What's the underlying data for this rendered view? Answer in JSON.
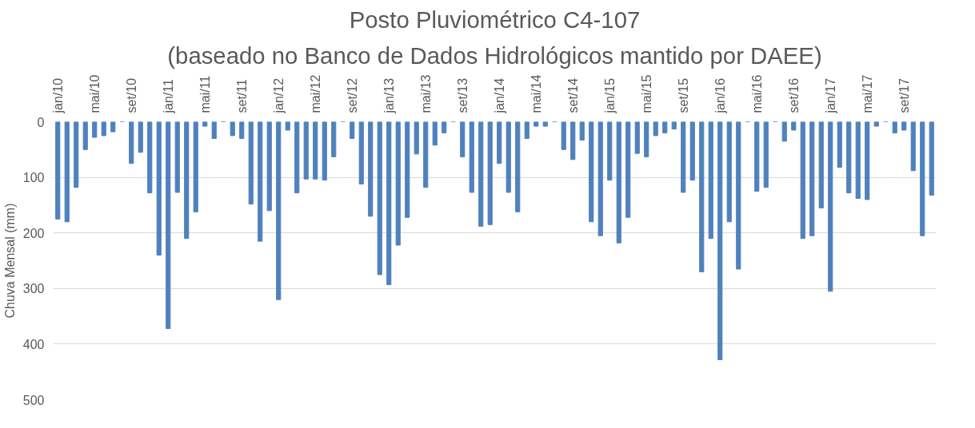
{
  "chart_data": {
    "type": "bar",
    "title": "Posto Pluviométrico C4-107",
    "subtitle": "(baseado no Banco de Dados Hidrológicos mantido por DAEE)",
    "ylabel": "Chuva Mensal (mm)",
    "categories": [
      "jan/10",
      null,
      null,
      null,
      "mai/10",
      null,
      null,
      null,
      "set/10",
      null,
      null,
      null,
      "jan/11",
      null,
      null,
      null,
      "mai/11",
      null,
      null,
      null,
      "set/11",
      null,
      null,
      null,
      "jan/12",
      null,
      null,
      null,
      "mai/12",
      null,
      null,
      null,
      "set/12",
      null,
      null,
      null,
      "jan/13",
      null,
      null,
      null,
      "mai/13",
      null,
      null,
      null,
      "set/13",
      null,
      null,
      null,
      "jan/14",
      null,
      null,
      null,
      "mai/14",
      null,
      null,
      null,
      "set/14",
      null,
      null,
      null,
      "jan/15",
      null,
      null,
      null,
      "mai/15",
      null,
      null,
      null,
      "set/15",
      null,
      null,
      null,
      "jan/16",
      null,
      null,
      null,
      "mai/16",
      null,
      null,
      null,
      "set/16",
      null,
      null,
      null,
      "jan/17",
      null,
      null,
      null,
      "mai/17",
      null,
      null,
      null,
      "set/17",
      null,
      null,
      null
    ],
    "values": [
      175,
      180,
      118,
      50,
      28,
      25,
      18,
      0,
      75,
      55,
      128,
      240,
      372,
      127,
      210,
      162,
      8,
      30,
      0,
      25,
      30,
      148,
      215,
      160,
      320,
      15,
      128,
      103,
      103,
      105,
      63,
      0,
      30,
      112,
      170,
      275,
      293,
      222,
      172,
      58,
      118,
      42,
      20,
      0,
      63,
      127,
      188,
      185,
      75,
      127,
      162,
      30,
      8,
      8,
      0,
      50,
      68,
      33,
      180,
      205,
      105,
      218,
      172,
      57,
      63,
      25,
      20,
      13,
      127,
      105,
      270,
      210,
      428,
      180,
      265,
      0,
      125,
      118,
      0,
      35,
      15,
      210,
      205,
      155,
      305,
      82,
      128,
      138,
      140,
      8,
      0,
      20,
      15,
      88,
      205,
      132
    ],
    "color": "#4f81bd",
    "ylim": [
      500,
      0
    ],
    "yticks": [
      0,
      100,
      200,
      300,
      400,
      500
    ],
    "grid": "y"
  }
}
